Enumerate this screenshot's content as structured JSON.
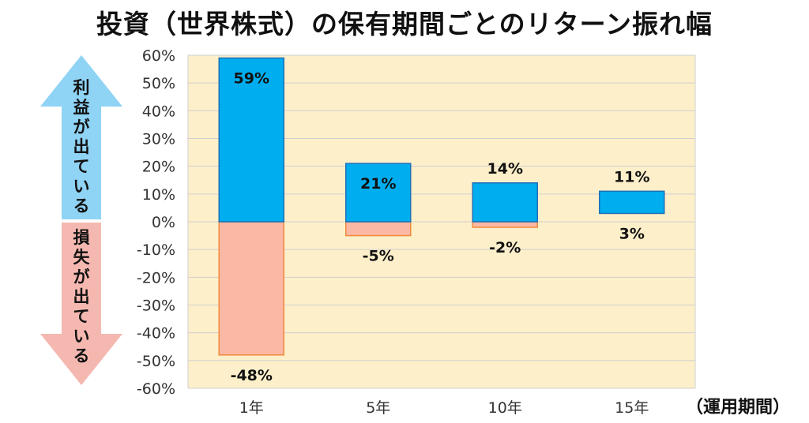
{
  "title": "投資（世界株式）の保有期間ごとのリターン振れ幅",
  "arrow_up_label": "利益が出ている",
  "arrow_down_label": "損失が出ている",
  "x_unit_label": "（運用期間）",
  "colors": {
    "plot_bg": "#fdefc9",
    "gain_fill": "#00aeef",
    "gain_stroke": "#1f6fb8",
    "loss_fill": "#fbb8a4",
    "loss_stroke": "#f08a3c",
    "arrow_up": "#8fd3f5",
    "arrow_down": "#f5b8b0",
    "grid": "#cfcfcf"
  },
  "chart_data": {
    "type": "bar",
    "title": "投資（世界株式）の保有期間ごとのリターン振れ幅",
    "categories": [
      "1年",
      "5年",
      "10年",
      "15年"
    ],
    "max_return": [
      59,
      21,
      14,
      11
    ],
    "min_return": [
      -48,
      -5,
      -2,
      3
    ],
    "max_labels": [
      "59%",
      "21%",
      "14%",
      "11%"
    ],
    "min_labels": [
      "-48%",
      "-5%",
      "-2%",
      "3%"
    ],
    "ylim": [
      -60,
      60
    ],
    "yticks": [
      60,
      50,
      40,
      30,
      20,
      10,
      0,
      -10,
      -20,
      -30,
      -40,
      -50,
      -60
    ],
    "ytick_labels": [
      "60%",
      "50%",
      "40%",
      "30%",
      "20%",
      "10%",
      "0%",
      "-10%",
      "-20%",
      "-30%",
      "-40%",
      "-50%",
      "-60%"
    ],
    "xlabel": "（運用期間）",
    "ylabel": "",
    "grid": true
  }
}
